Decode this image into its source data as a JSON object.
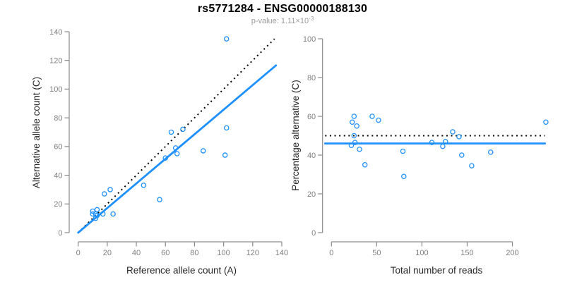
{
  "header": {
    "title": "rs5771284 - ENSG00000188130",
    "pvalue_base": "p-value: 1.11×10",
    "pvalue_exp": "-3"
  },
  "colors": {
    "accent": "#1E90FF",
    "dotted_line": "#000000",
    "axis_line": "#8a8a8a",
    "tick_label": "#7f7f7f",
    "axis_title": "#262626",
    "title": "#000000",
    "subtitle": "#9a9a9a"
  },
  "chart_data": [
    {
      "id": "allele-counts",
      "type": "scatter",
      "title": "",
      "xlabel": "Reference allele count (A)",
      "ylabel": "Alternative allele count (C)",
      "xlim": [
        0,
        140
      ],
      "ylim": [
        0,
        140
      ],
      "xticks": [
        0,
        20,
        40,
        60,
        80,
        100,
        120,
        140
      ],
      "yticks": [
        0,
        20,
        40,
        60,
        80,
        100,
        120,
        140
      ],
      "grid": false,
      "legend": null,
      "points": [
        [
          10,
          13
        ],
        [
          10,
          15
        ],
        [
          12,
          10
        ],
        [
          12,
          13
        ],
        [
          13,
          12
        ],
        [
          13,
          16
        ],
        [
          17,
          13
        ],
        [
          18,
          27
        ],
        [
          22,
          30
        ],
        [
          24,
          13
        ],
        [
          45,
          33
        ],
        [
          56,
          23
        ],
        [
          60,
          52
        ],
        [
          64,
          70
        ],
        [
          67,
          59
        ],
        [
          68,
          55
        ],
        [
          72,
          72
        ],
        [
          86,
          57
        ],
        [
          101,
          54
        ],
        [
          102,
          73
        ],
        [
          102,
          135
        ]
      ],
      "lines": [
        {
          "id": "expected-ratio-line",
          "style": "dotted",
          "color": "#000000",
          "x1": 0,
          "y1": 0,
          "x2": 135,
          "y2": 135
        },
        {
          "id": "fitted-ratio-line",
          "style": "solid",
          "color": "#1E90FF",
          "x1": 0,
          "y1": 0,
          "x2": 136,
          "y2": 116.5
        }
      ]
    },
    {
      "id": "percentage-vs-reads",
      "type": "scatter",
      "title": "",
      "xlabel": "Total number of reads",
      "ylabel": "Percentage alternative (C)",
      "xlim": [
        0,
        238
      ],
      "ylim": [
        0,
        100
      ],
      "xticks": [
        0,
        50,
        100,
        150,
        200
      ],
      "yticks": [
        0,
        20,
        40,
        60,
        80,
        100
      ],
      "grid": false,
      "legend": null,
      "points": [
        [
          22,
          45
        ],
        [
          23,
          57
        ],
        [
          25,
          60
        ],
        [
          25,
          50
        ],
        [
          26,
          46.5
        ],
        [
          28,
          55
        ],
        [
          31,
          43
        ],
        [
          37,
          35
        ],
        [
          45,
          60
        ],
        [
          52,
          58
        ],
        [
          79,
          42
        ],
        [
          80,
          29
        ],
        [
          111,
          46.5
        ],
        [
          123,
          44.5
        ],
        [
          126,
          47
        ],
        [
          134,
          52
        ],
        [
          141,
          49.5
        ],
        [
          144,
          40
        ],
        [
          155,
          34.5
        ],
        [
          176,
          41.5
        ],
        [
          237,
          57
        ]
      ],
      "lines": [
        {
          "id": "expected-percentage-line",
          "style": "dotted",
          "color": "#000000",
          "x1": -7,
          "y1": 50,
          "x2": 236,
          "y2": 50
        },
        {
          "id": "fitted-percentage-line",
          "style": "solid",
          "color": "#1E90FF",
          "x1": -7,
          "y1": 46,
          "x2": 236,
          "y2": 46
        }
      ]
    }
  ]
}
